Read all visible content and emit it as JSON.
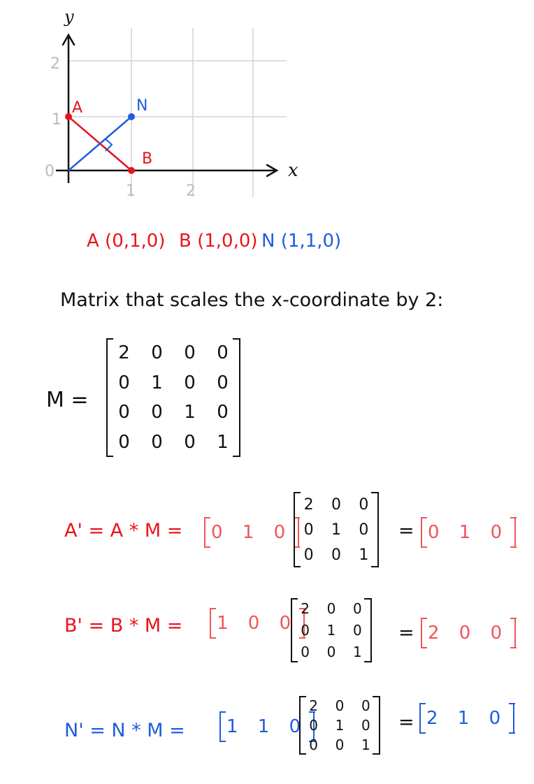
{
  "graph": {
    "y_axis_label": "y",
    "x_axis_label": "x",
    "y_ticks": [
      "2",
      "1",
      "0"
    ],
    "x_ticks": [
      "1",
      "2"
    ],
    "point_labels": {
      "A": "A",
      "N": "N",
      "B": "B"
    },
    "points": [
      {
        "name": "A",
        "x": 0,
        "y": 1,
        "color": "#e8141a"
      },
      {
        "name": "B",
        "x": 1,
        "y": 0,
        "color": "#e8141a"
      },
      {
        "name": "N",
        "x": 1,
        "y": 1,
        "color": "#1f5de0"
      }
    ],
    "colors": {
      "axis": "#111111",
      "grid": "#d4d4d4",
      "red": "#e8141a",
      "blue": "#1f5de0"
    }
  },
  "coords": {
    "A": "A (0,1,0)",
    "B": "B (1,0,0)",
    "N": "N (1,1,0)"
  },
  "caption": "Matrix that scales the x-coordinate by 2:",
  "matrix_M": {
    "label": "M =",
    "rows": [
      [
        "2",
        "0",
        "0",
        "0"
      ],
      [
        "0",
        "1",
        "0",
        "0"
      ],
      [
        "0",
        "0",
        "1",
        "0"
      ],
      [
        "0",
        "0",
        "0",
        "1"
      ]
    ]
  },
  "products": [
    {
      "lhs": "A' = A * M =",
      "vec": "0 1 0",
      "matrix": [
        [
          "2",
          "0",
          "0"
        ],
        [
          "0",
          "1",
          "0"
        ],
        [
          "0",
          "0",
          "1"
        ]
      ],
      "eq": "=",
      "result": "0 1 0"
    },
    {
      "lhs": "B' = B * M =",
      "vec": "1 0 0",
      "matrix": [
        [
          "2",
          "0",
          "0"
        ],
        [
          "0",
          "1",
          "0"
        ],
        [
          "0",
          "0",
          "1"
        ]
      ],
      "eq": "=",
      "result": "2 0 0"
    },
    {
      "lhs": "N' = N * M =",
      "vec": "1 1 0",
      "matrix": [
        [
          "2",
          "0",
          "0"
        ],
        [
          "0",
          "1",
          "0"
        ],
        [
          "0",
          "0",
          "1"
        ]
      ],
      "eq": "=",
      "result": "2 1 0"
    }
  ]
}
